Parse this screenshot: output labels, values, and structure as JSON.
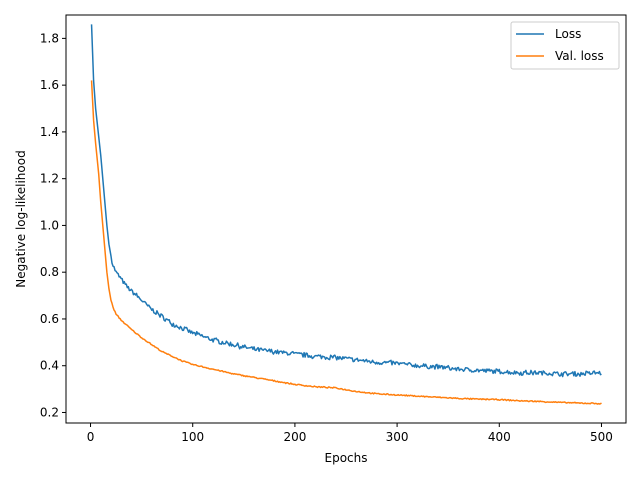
{
  "chart_data": {
    "type": "line",
    "title": "",
    "xlabel": "Epochs",
    "ylabel": "Negative log-likelihood",
    "xlim": [
      -24,
      524
    ],
    "ylim": [
      0.155,
      1.9
    ],
    "xticks": [
      0,
      100,
      200,
      300,
      400,
      500
    ],
    "yticks": [
      0.2,
      0.4,
      0.6,
      0.8,
      1.0,
      1.2,
      1.4,
      1.6,
      1.8
    ],
    "ytick_labels": [
      "0.2",
      "0.4",
      "0.6",
      "0.8",
      "1.0",
      "1.2",
      "1.4",
      "1.6",
      "1.8"
    ],
    "grid": false,
    "legend_position": "top-right",
    "series": [
      {
        "name": "Loss",
        "color": "#1f77b4",
        "noise": 0.012,
        "points": [
          [
            1,
            1.86
          ],
          [
            3,
            1.62
          ],
          [
            5,
            1.5
          ],
          [
            8,
            1.38
          ],
          [
            10,
            1.3
          ],
          [
            12,
            1.2
          ],
          [
            14,
            1.1
          ],
          [
            16,
            1.0
          ],
          [
            18,
            0.92
          ],
          [
            20,
            0.87
          ],
          [
            22,
            0.83
          ],
          [
            25,
            0.8
          ],
          [
            30,
            0.77
          ],
          [
            35,
            0.74
          ],
          [
            40,
            0.72
          ],
          [
            50,
            0.68
          ],
          [
            60,
            0.64
          ],
          [
            70,
            0.61
          ],
          [
            80,
            0.58
          ],
          [
            90,
            0.56
          ],
          [
            100,
            0.54
          ],
          [
            120,
            0.51
          ],
          [
            140,
            0.49
          ],
          [
            160,
            0.47
          ],
          [
            180,
            0.46
          ],
          [
            200,
            0.45
          ],
          [
            220,
            0.44
          ],
          [
            240,
            0.435
          ],
          [
            260,
            0.425
          ],
          [
            280,
            0.415
          ],
          [
            300,
            0.41
          ],
          [
            320,
            0.4
          ],
          [
            340,
            0.395
          ],
          [
            360,
            0.385
          ],
          [
            380,
            0.38
          ],
          [
            400,
            0.375
          ],
          [
            420,
            0.37
          ],
          [
            440,
            0.37
          ],
          [
            460,
            0.365
          ],
          [
            480,
            0.365
          ],
          [
            500,
            0.37
          ]
        ]
      },
      {
        "name": "Val. loss",
        "color": "#ff7f0e",
        "noise": 0.003,
        "points": [
          [
            1,
            1.62
          ],
          [
            3,
            1.45
          ],
          [
            5,
            1.35
          ],
          [
            8,
            1.22
          ],
          [
            10,
            1.1
          ],
          [
            12,
            1.0
          ],
          [
            14,
            0.9
          ],
          [
            16,
            0.8
          ],
          [
            18,
            0.73
          ],
          [
            20,
            0.68
          ],
          [
            22,
            0.65
          ],
          [
            25,
            0.62
          ],
          [
            30,
            0.595
          ],
          [
            35,
            0.575
          ],
          [
            40,
            0.555
          ],
          [
            50,
            0.52
          ],
          [
            60,
            0.49
          ],
          [
            70,
            0.46
          ],
          [
            80,
            0.44
          ],
          [
            90,
            0.42
          ],
          [
            100,
            0.405
          ],
          [
            120,
            0.385
          ],
          [
            140,
            0.365
          ],
          [
            160,
            0.35
          ],
          [
            180,
            0.335
          ],
          [
            200,
            0.32
          ],
          [
            220,
            0.31
          ],
          [
            240,
            0.305
          ],
          [
            260,
            0.29
          ],
          [
            280,
            0.28
          ],
          [
            300,
            0.275
          ],
          [
            320,
            0.27
          ],
          [
            340,
            0.265
          ],
          [
            360,
            0.26
          ],
          [
            380,
            0.257
          ],
          [
            400,
            0.255
          ],
          [
            420,
            0.25
          ],
          [
            440,
            0.247
          ],
          [
            460,
            0.243
          ],
          [
            480,
            0.24
          ],
          [
            500,
            0.238
          ]
        ]
      }
    ]
  }
}
